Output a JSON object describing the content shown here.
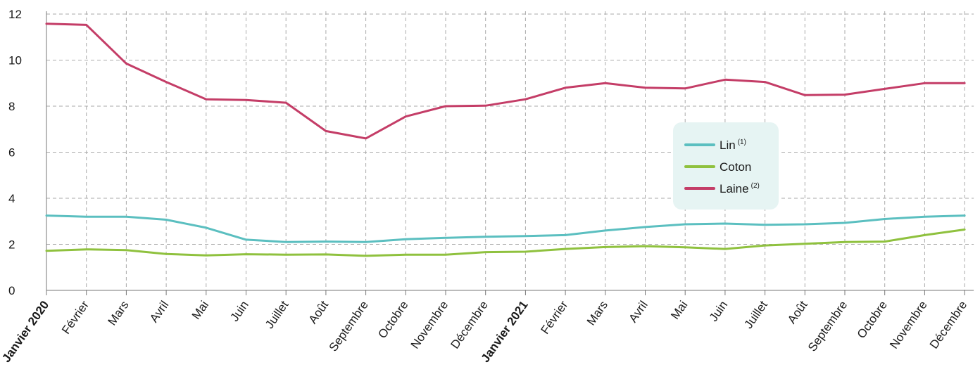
{
  "chart_data": {
    "type": "line",
    "title": "",
    "xlabel": "",
    "ylabel": "",
    "ylim": [
      0,
      12
    ],
    "yticks": [
      0,
      2,
      4,
      6,
      8,
      10,
      12
    ],
    "grid": true,
    "legend_position": "right-center",
    "categories": [
      "Janvier 2020",
      "Février",
      "Mars",
      "Avril",
      "Mai",
      "Juin",
      "Juillet",
      "Août",
      "Septembre",
      "Octobre",
      "Novembre",
      "Décembre",
      "Janvier 2021",
      "Février",
      "Mars",
      "Avril",
      "Mai",
      "Juin",
      "Juillet",
      "Août",
      "Septembre",
      "Octobre",
      "Novembre",
      "Décembre"
    ],
    "bold_categories": [
      0,
      12
    ],
    "series": [
      {
        "name": "Lin",
        "note": "(1)",
        "color": "#5bbfc0",
        "values": [
          3.25,
          3.2,
          3.2,
          3.07,
          2.72,
          2.2,
          2.1,
          2.12,
          2.1,
          2.22,
          2.28,
          2.33,
          2.36,
          2.4,
          2.6,
          2.75,
          2.87,
          2.9,
          2.85,
          2.87,
          2.93,
          3.1,
          3.2,
          3.25
        ]
      },
      {
        "name": "Coton",
        "note": "",
        "color": "#8fc13e",
        "values": [
          1.72,
          1.78,
          1.75,
          1.58,
          1.52,
          1.57,
          1.55,
          1.56,
          1.5,
          1.55,
          1.55,
          1.66,
          1.68,
          1.8,
          1.88,
          1.92,
          1.87,
          1.8,
          1.95,
          2.02,
          2.1,
          2.12,
          2.4,
          2.64
        ]
      },
      {
        "name": "Laine",
        "note": "(2)",
        "color": "#c43d67",
        "values": [
          11.58,
          11.53,
          9.85,
          9.05,
          8.3,
          8.27,
          8.15,
          6.92,
          6.6,
          7.55,
          8.0,
          8.02,
          8.3,
          8.8,
          9.0,
          8.8,
          8.77,
          9.15,
          9.05,
          8.48,
          8.5,
          8.75,
          9.0,
          9.0
        ]
      }
    ],
    "colors": {
      "grid": "#aaaaaa",
      "axis": "#777777",
      "legend_bg": "#e6f4f3"
    }
  }
}
